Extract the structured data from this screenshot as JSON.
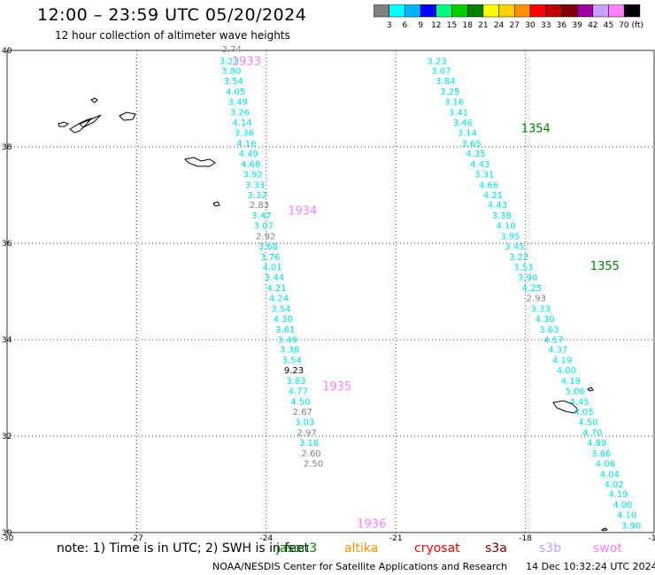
{
  "header": {
    "title": "12:00 – 23:59 UTC 05/20/2024",
    "subtitle": "12 hour collection of altimeter wave heights"
  },
  "legend": {
    "colors": [
      "#808080",
      "#00ffff",
      "#00b4ff",
      "#0000ff",
      "#00ff80",
      "#00d000",
      "#008000",
      "#ffff00",
      "#ffd000",
      "#ff9000",
      "#ff0000",
      "#c00000",
      "#800000",
      "#a000a0",
      "#c8a0ff",
      "#ff80ff",
      "#000000"
    ],
    "labels": [
      "3",
      "6",
      "9",
      "12",
      "15",
      "18",
      "21",
      "24",
      "27",
      "30",
      "33",
      "36",
      "39",
      "42",
      "45",
      "70 (ft)"
    ]
  },
  "notes": {
    "prefix": "note:  1) Time is in UTC;  2) SWH is in feet",
    "satellites": [
      {
        "name": "jason3",
        "color": "#008000"
      },
      {
        "name": "altika",
        "color": "#ff9000"
      },
      {
        "name": "cryosat",
        "color": "#ff0000"
      },
      {
        "name": "s3a",
        "color": "#800000"
      },
      {
        "name": "s3b",
        "color": "#c8a0ff"
      },
      {
        "name": "swot",
        "color": "#ff80ff"
      }
    ]
  },
  "footer": {
    "credit": "NOAA/NESDIS Center for Satellite Applications and Research",
    "timestamp": "14 Dec 10:32:24 UTC 2024"
  },
  "chart_data": {
    "type": "scatter",
    "title": "12:00 – 23:59 UTC 05/20/2024",
    "subtitle": "12 hour collection of altimeter wave heights",
    "xlim": [
      -30,
      -15
    ],
    "ylim": [
      30,
      40
    ],
    "x_ticks": [
      -30,
      -27,
      -24,
      -21,
      -18,
      -15
    ],
    "y_ticks": [
      30,
      32,
      34,
      36,
      38,
      40
    ],
    "grid": true,
    "units": "ft",
    "passes": [
      {
        "label": "1933",
        "color": "#ff80ff",
        "lon": -24.8,
        "lat": 39.7
      },
      {
        "label": "1934",
        "color": "#ff80ff",
        "lon": -23.5,
        "lat": 36.6
      },
      {
        "label": "1935",
        "color": "#ff80ff",
        "lon": -22.7,
        "lat": 32.95
      },
      {
        "label": "1936",
        "color": "#ff80ff",
        "lon": -21.9,
        "lat": 30.1
      },
      {
        "label": "1354",
        "color": "#008000",
        "lon": -18.1,
        "lat": 38.3
      },
      {
        "label": "1355",
        "color": "#008000",
        "lon": -16.5,
        "lat": 35.45
      }
    ],
    "series": [
      {
        "points": [
          {
            "lon": -24.8,
            "lat": 39.96,
            "v": 2.74
          },
          {
            "lon": -24.86,
            "lat": 39.72,
            "v": 3.23
          },
          {
            "lon": -24.81,
            "lat": 39.51,
            "v": 3.8
          },
          {
            "lon": -24.76,
            "lat": 39.3,
            "v": 3.54
          },
          {
            "lon": -24.71,
            "lat": 39.08,
            "v": 4.05
          },
          {
            "lon": -24.66,
            "lat": 38.87,
            "v": 3.49
          },
          {
            "lon": -24.61,
            "lat": 38.65,
            "v": 3.26
          },
          {
            "lon": -24.56,
            "lat": 38.44,
            "v": 4.14
          },
          {
            "lon": -24.51,
            "lat": 38.23,
            "v": 3.36
          },
          {
            "lon": -24.46,
            "lat": 38.01,
            "v": 4.16
          },
          {
            "lon": -24.41,
            "lat": 37.8,
            "v": 4.49
          },
          {
            "lon": -24.36,
            "lat": 37.58,
            "v": 4.68
          },
          {
            "lon": -24.31,
            "lat": 37.37,
            "v": 3.92
          },
          {
            "lon": -24.26,
            "lat": 37.15,
            "v": 3.33
          },
          {
            "lon": -24.21,
            "lat": 36.94,
            "v": 3.32
          },
          {
            "lon": -24.16,
            "lat": 36.73,
            "v": 2.83
          },
          {
            "lon": -24.11,
            "lat": 36.51,
            "v": 3.47
          },
          {
            "lon": -24.06,
            "lat": 36.3,
            "v": 3.07
          },
          {
            "lon": -24.01,
            "lat": 36.08,
            "v": 2.92
          },
          {
            "lon": -23.96,
            "lat": 35.87,
            "v": 3.68
          },
          {
            "lon": -23.91,
            "lat": 35.65,
            "v": 3.76
          },
          {
            "lon": -23.86,
            "lat": 35.44,
            "v": 4.01
          },
          {
            "lon": -23.81,
            "lat": 35.23,
            "v": 3.44
          },
          {
            "lon": -23.76,
            "lat": 35.01,
            "v": 4.21
          },
          {
            "lon": -23.71,
            "lat": 34.8,
            "v": 4.24
          },
          {
            "lon": -23.66,
            "lat": 34.58,
            "v": 3.54
          },
          {
            "lon": -23.61,
            "lat": 34.37,
            "v": 4.3
          },
          {
            "lon": -23.56,
            "lat": 34.15,
            "v": 3.61
          },
          {
            "lon": -23.51,
            "lat": 33.94,
            "v": 3.49
          },
          {
            "lon": -23.46,
            "lat": 33.73,
            "v": 3.38
          },
          {
            "lon": -23.41,
            "lat": 33.51,
            "v": 3.54
          },
          {
            "lon": -23.36,
            "lat": 33.3,
            "v": 9.23
          },
          {
            "lon": -23.31,
            "lat": 33.08,
            "v": 3.83
          },
          {
            "lon": -23.26,
            "lat": 32.87,
            "v": 4.77
          },
          {
            "lon": -23.21,
            "lat": 32.65,
            "v": 4.5
          },
          {
            "lon": -23.16,
            "lat": 32.44,
            "v": 2.67
          },
          {
            "lon": -23.11,
            "lat": 32.23,
            "v": 3.03
          },
          {
            "lon": -23.06,
            "lat": 32.01,
            "v": 2.97
          },
          {
            "lon": -23.01,
            "lat": 31.8,
            "v": 3.18
          },
          {
            "lon": -22.96,
            "lat": 31.58,
            "v": 2.6
          },
          {
            "lon": -22.91,
            "lat": 31.37,
            "v": 2.5
          }
        ]
      },
      {
        "points": [
          {
            "lon": -20.05,
            "lat": 39.72,
            "v": 3.23
          },
          {
            "lon": -19.95,
            "lat": 39.51,
            "v": 3.07
          },
          {
            "lon": -19.85,
            "lat": 39.3,
            "v": 3.84
          },
          {
            "lon": -19.75,
            "lat": 39.08,
            "v": 3.25
          },
          {
            "lon": -19.65,
            "lat": 38.87,
            "v": 3.16
          },
          {
            "lon": -19.55,
            "lat": 38.65,
            "v": 3.41
          },
          {
            "lon": -19.45,
            "lat": 38.44,
            "v": 3.46
          },
          {
            "lon": -19.35,
            "lat": 38.23,
            "v": 3.14
          },
          {
            "lon": -19.25,
            "lat": 38.01,
            "v": 3.65
          },
          {
            "lon": -19.15,
            "lat": 37.8,
            "v": 4.35
          },
          {
            "lon": -19.05,
            "lat": 37.58,
            "v": 4.43
          },
          {
            "lon": -18.95,
            "lat": 37.37,
            "v": 3.31
          },
          {
            "lon": -18.85,
            "lat": 37.15,
            "v": 4.66
          },
          {
            "lon": -18.75,
            "lat": 36.94,
            "v": 4.21
          },
          {
            "lon": -18.65,
            "lat": 36.73,
            "v": 4.43
          },
          {
            "lon": -18.55,
            "lat": 36.51,
            "v": 3.38
          },
          {
            "lon": -18.45,
            "lat": 36.3,
            "v": 4.1
          },
          {
            "lon": -18.35,
            "lat": 36.08,
            "v": 3.95
          },
          {
            "lon": -18.25,
            "lat": 35.87,
            "v": 3.45
          },
          {
            "lon": -18.15,
            "lat": 35.65,
            "v": 3.22
          },
          {
            "lon": -18.05,
            "lat": 35.44,
            "v": 3.53
          },
          {
            "lon": -17.95,
            "lat": 35.23,
            "v": 3.9
          },
          {
            "lon": -17.85,
            "lat": 35.01,
            "v": 4.25
          },
          {
            "lon": -17.75,
            "lat": 34.8,
            "v": 2.93
          },
          {
            "lon": -17.65,
            "lat": 34.58,
            "v": 3.33
          },
          {
            "lon": -17.55,
            "lat": 34.37,
            "v": 4.3
          },
          {
            "lon": -17.45,
            "lat": 34.15,
            "v": 3.63
          },
          {
            "lon": -17.35,
            "lat": 33.94,
            "v": 4.57
          },
          {
            "lon": -17.25,
            "lat": 33.73,
            "v": 4.37
          },
          {
            "lon": -17.15,
            "lat": 33.51,
            "v": 4.19
          },
          {
            "lon": -17.05,
            "lat": 33.3,
            "v": 4.0
          },
          {
            "lon": -16.95,
            "lat": 33.08,
            "v": 4.19
          },
          {
            "lon": -16.85,
            "lat": 32.87,
            "v": 5.06
          },
          {
            "lon": -16.75,
            "lat": 32.65,
            "v": 4.45
          },
          {
            "lon": -16.65,
            "lat": 32.44,
            "v": 4.05
          },
          {
            "lon": -16.55,
            "lat": 32.23,
            "v": 4.5
          },
          {
            "lon": -16.45,
            "lat": 32.01,
            "v": 4.7
          },
          {
            "lon": -16.35,
            "lat": 31.8,
            "v": 4.89
          },
          {
            "lon": -16.25,
            "lat": 31.58,
            "v": 3.86
          },
          {
            "lon": -16.15,
            "lat": 31.37,
            "v": 4.06
          },
          {
            "lon": -16.05,
            "lat": 31.15,
            "v": 4.04
          },
          {
            "lon": -15.95,
            "lat": 30.94,
            "v": 4.02
          },
          {
            "lon": -15.85,
            "lat": 30.73,
            "v": 4.19
          },
          {
            "lon": -15.75,
            "lat": 30.51,
            "v": 4.0
          },
          {
            "lon": -15.65,
            "lat": 30.3,
            "v": 4.1
          },
          {
            "lon": -15.55,
            "lat": 30.08,
            "v": 3.9
          }
        ]
      }
    ]
  }
}
